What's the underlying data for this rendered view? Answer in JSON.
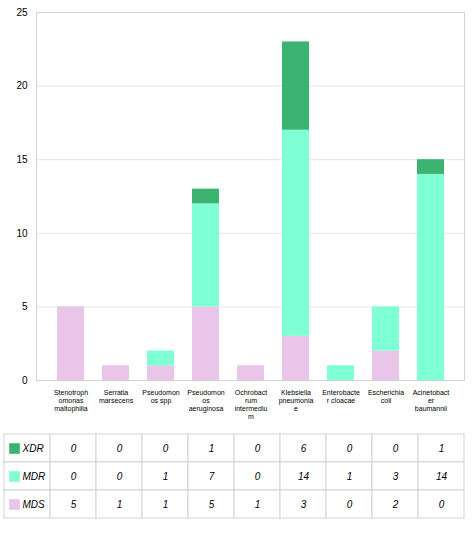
{
  "chart_data": {
    "type": "bar",
    "stacked": true,
    "categories": [
      "Stenotroph\nomonas\nmaltophilia",
      "Serratia\nmarsecens",
      "Pseudomon\nos spp",
      "Pseudomon\nos\naeruginosa",
      "Ochrobact\nrum\nintermediu\nm",
      "Klebsiella\npneumonia\ne",
      "Enterobacte\nr cloacae",
      "Escherichia\ncoli",
      "Acinetobact\ner\nbaumannii"
    ],
    "series": [
      {
        "name": "XDR",
        "color": "#3CB371",
        "values": [
          0,
          0,
          0,
          1,
          0,
          6,
          0,
          0,
          1
        ]
      },
      {
        "name": "MDR",
        "color": "#7FFFD4",
        "values": [
          0,
          0,
          1,
          7,
          0,
          14,
          1,
          3,
          14
        ]
      },
      {
        "name": "MDS",
        "color": "#EAC5EA",
        "values": [
          5,
          1,
          1,
          5,
          1,
          3,
          0,
          2,
          0
        ]
      }
    ],
    "ylim": [
      0,
      25
    ],
    "yticks": [
      0,
      5,
      10,
      15,
      20,
      25
    ],
    "grid": true,
    "legend": "bottom"
  }
}
